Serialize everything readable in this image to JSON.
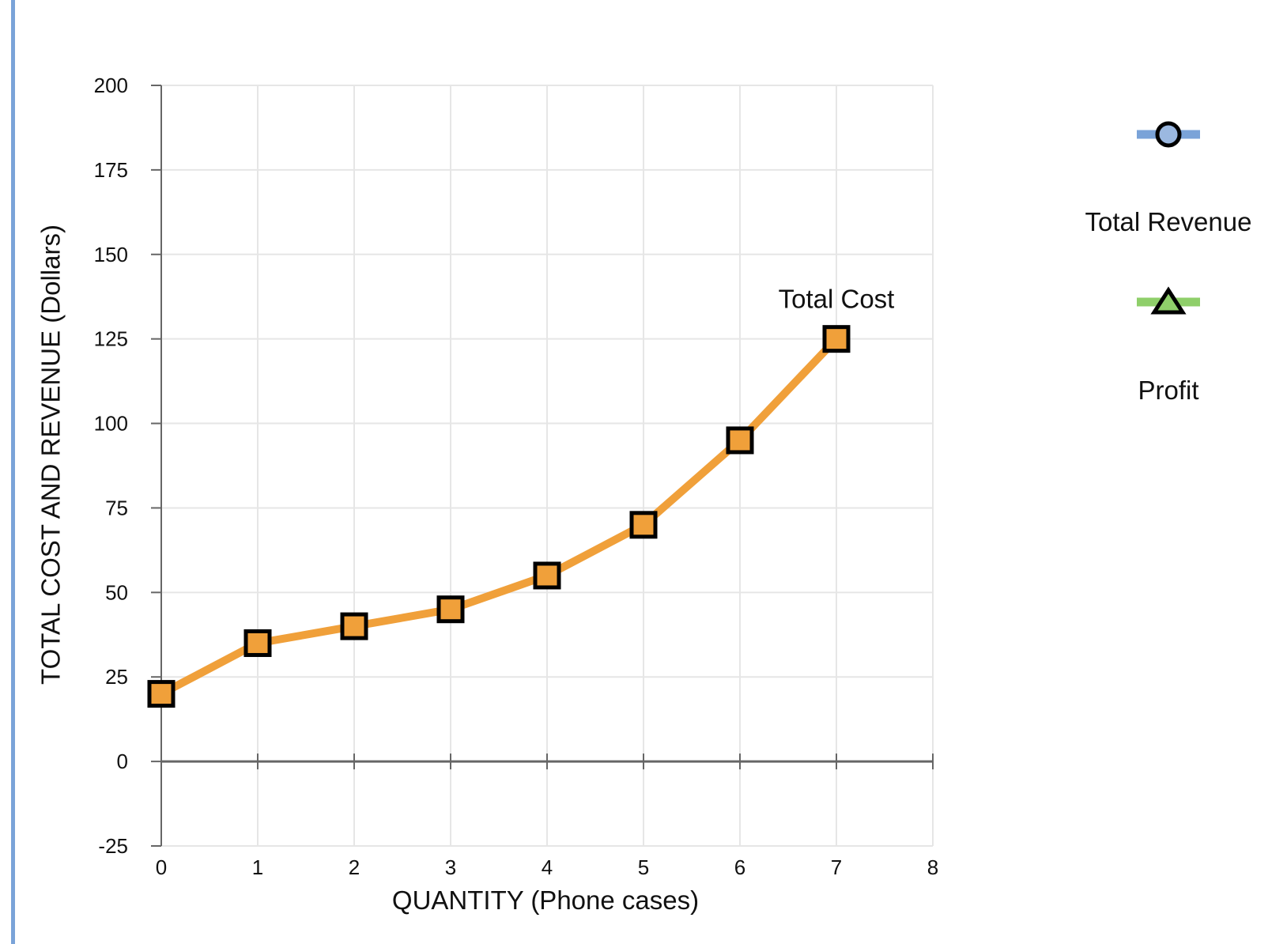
{
  "chart_data": {
    "type": "line",
    "xlabel": "QUANTITY (Phone cases)",
    "ylabel": "TOTAL COST AND REVENUE (Dollars)",
    "xlim": [
      0,
      8
    ],
    "ylim": [
      -25,
      200
    ],
    "x_ticks": [
      0,
      1,
      2,
      3,
      4,
      5,
      6,
      7,
      8
    ],
    "y_ticks": [
      -25,
      0,
      25,
      50,
      75,
      100,
      125,
      150,
      175,
      200
    ],
    "grid": true,
    "legend_position": "right",
    "series": [
      {
        "name": "Total Cost",
        "color": "#f0a03a",
        "marker": "square",
        "x": [
          0,
          1,
          2,
          3,
          4,
          5,
          6,
          7
        ],
        "y": [
          20,
          35,
          40,
          45,
          55,
          70,
          95,
          125
        ]
      }
    ],
    "annotations": [
      {
        "text": "Total Cost",
        "x": 7,
        "y": 125
      }
    ],
    "legend": [
      {
        "name": "Total Revenue",
        "color": "#7aa3d8",
        "marker": "circle",
        "marker_fill": "#9bb8e0"
      },
      {
        "name": "Profit",
        "color": "#8fcf6a",
        "marker": "triangle",
        "marker_fill": "#8fcf6a"
      }
    ]
  }
}
